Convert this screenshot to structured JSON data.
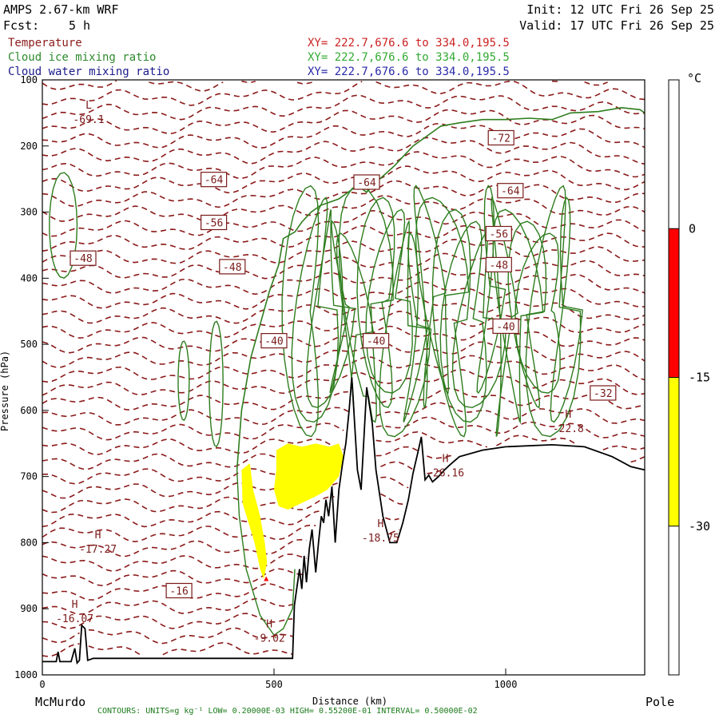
{
  "header": {
    "model": "AMPS 2.67-km WRF",
    "forecast_label": "Fcst:",
    "forecast_value": "5 h",
    "init": "Init: 12 UTC Fri 26 Sep 25",
    "valid": "Valid: 17 UTC Fri 26 Sep 25"
  },
  "fields": [
    {
      "name": "Temperature",
      "xy": "XY= 222.7,676.6 to 334.0,195.5",
      "color": "#8b1a1a"
    },
    {
      "name": "Cloud ice mixing ratio",
      "xy": "XY= 222.7,676.6 to 334.0,195.5",
      "color": "#2e8b2e"
    },
    {
      "name": "Cloud water mixing ratio",
      "xy": "XY= 222.7,676.6 to 334.0,195.5",
      "color": "#1a1a8b"
    }
  ],
  "footer": {
    "contours": "CONTOURS: UNITS=g kg⁻¹ LOW= 0.20000E-03 HIGH= 0.55200E-01 INTERVAL= 0.50000E-02"
  },
  "chart_data": {
    "type": "contour",
    "xlabel": "Distance (km)",
    "ylabel": "Pressure (hPa)",
    "xlim": [
      0,
      1300
    ],
    "ylim": [
      1000,
      100
    ],
    "x_ticks": [
      0,
      500,
      1000
    ],
    "y_ticks": [
      100,
      200,
      300,
      400,
      500,
      600,
      700,
      800,
      900,
      1000
    ],
    "x_start_label": "McMurdo",
    "x_end_label": "Pole",
    "colorbar": {
      "unit": "°C",
      "ticks": [
        "0",
        "-15",
        "-30"
      ],
      "segments": [
        {
          "from": "",
          "to": "0",
          "color": "#ffffff"
        },
        {
          "from": "0",
          "to": "-15",
          "color": "#ff0000"
        },
        {
          "from": "-15",
          "to": "-30",
          "color": "#ffff00"
        },
        {
          "from": "-30",
          "to": "",
          "color": "#ffffff"
        }
      ]
    },
    "temperature_labels": [
      {
        "text": "-72",
        "x": 990,
        "p": 190,
        "boxed": true
      },
      {
        "text": "-64",
        "x": 370,
        "p": 253,
        "boxed": true
      },
      {
        "text": "-64",
        "x": 700,
        "p": 257,
        "boxed": true
      },
      {
        "text": "-64",
        "x": 1010,
        "p": 270,
        "boxed": true
      },
      {
        "text": "-56",
        "x": 370,
        "p": 318,
        "boxed": true
      },
      {
        "text": "-56",
        "x": 985,
        "p": 335,
        "boxed": true
      },
      {
        "text": "-48",
        "x": 88,
        "p": 372,
        "boxed": true
      },
      {
        "text": "-48",
        "x": 410,
        "p": 385,
        "boxed": true
      },
      {
        "text": "-48",
        "x": 985,
        "p": 382,
        "boxed": true
      },
      {
        "text": "-40",
        "x": 500,
        "p": 497,
        "boxed": true
      },
      {
        "text": "-40",
        "x": 720,
        "p": 497,
        "boxed": true
      },
      {
        "text": "-40",
        "x": 1000,
        "p": 475,
        "boxed": true
      },
      {
        "text": "-32",
        "x": 1210,
        "p": 576,
        "boxed": true
      },
      {
        "text": "-16",
        "x": 295,
        "p": 875,
        "boxed": true
      }
    ],
    "extrema": [
      {
        "kind": "L",
        "value": "-69.1",
        "x": 100,
        "p": 165
      },
      {
        "kind": "H",
        "value": "-17.27",
        "x": 120,
        "p": 815
      },
      {
        "kind": "H",
        "value": "-16.07",
        "x": 70,
        "p": 920
      },
      {
        "kind": "H",
        "value": "-9.02",
        "x": 490,
        "p": 950
      },
      {
        "kind": "H",
        "value": "-18.75",
        "x": 730,
        "p": 798
      },
      {
        "kind": "H",
        "value": "-26.16",
        "x": 870,
        "p": 700
      },
      {
        "kind": "H",
        "value": "-22.8",
        "x": 1135,
        "p": 633
      }
    ]
  }
}
